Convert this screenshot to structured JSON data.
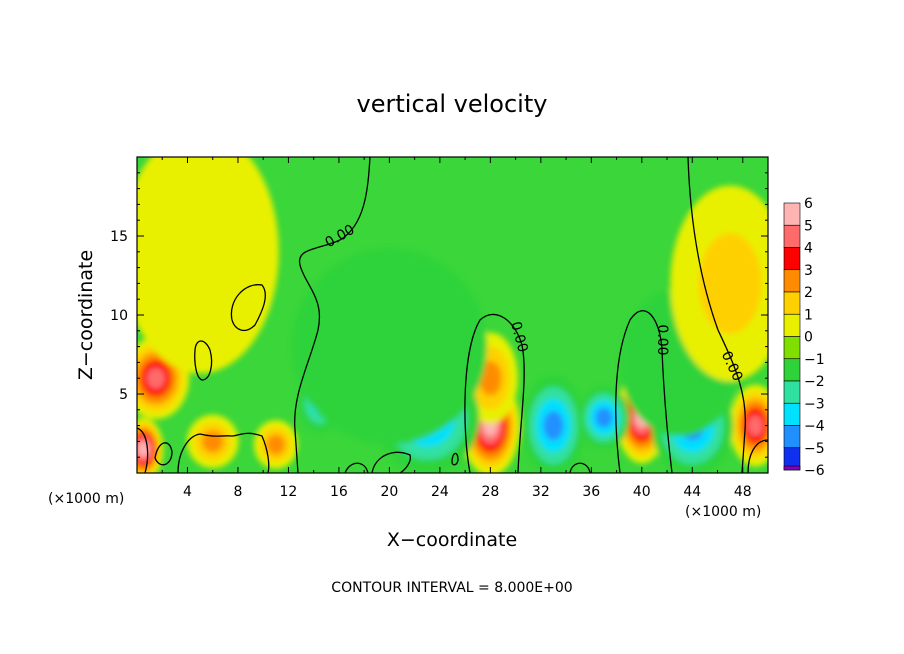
{
  "chart_data": {
    "type": "heatmap",
    "title": "vertical velocity",
    "xlabel": "X−coordinate",
    "ylabel": "Z−coordinate",
    "x_unit_left": "(×1000 m)",
    "x_unit_right": "(×1000 m)",
    "xlim": [
      0,
      50
    ],
    "ylim": [
      0,
      20
    ],
    "x_ticks": [
      "4",
      "8",
      "12",
      "16",
      "20",
      "24",
      "28",
      "32",
      "36",
      "40",
      "44",
      "48"
    ],
    "x_tick_values": [
      4,
      8,
      12,
      16,
      20,
      24,
      28,
      32,
      36,
      40,
      44,
      48
    ],
    "y_ticks": [
      "5",
      "10",
      "15"
    ],
    "y_tick_values": [
      5,
      10,
      15
    ],
    "footer": "CONTOUR INTERVAL = 8.000E+00",
    "contour_labels": [
      "0.00",
      "0.00",
      "0.00",
      "0.00"
    ],
    "colorbar": {
      "labels": [
        "6",
        "5",
        "4",
        "3",
        "2",
        "1",
        "0",
        "−1",
        "−2",
        "−3",
        "−4",
        "−5",
        "−6"
      ],
      "values": [
        6,
        5,
        4,
        3,
        2,
        1,
        0,
        -1,
        -2,
        -3,
        -4,
        -5,
        -6
      ],
      "colors": [
        "#ffb4b4",
        "#ff6b6b",
        "#ff0000",
        "#ff8c00",
        "#ffd000",
        "#e8f000",
        "#7fe000",
        "#2ed33a",
        "#30e0a0",
        "#00e0ff",
        "#2090ff",
        "#1030f0",
        "#8000c0"
      ]
    },
    "field_blobs": [
      {
        "x": 1.5,
        "z": 6.0,
        "value": 5.0,
        "sx": 1.6,
        "sz": 1.6
      },
      {
        "x": 0.5,
        "z": 1.5,
        "value": 5.5,
        "sx": 0.9,
        "sz": 1.2
      },
      {
        "x": 6.0,
        "z": 2.0,
        "value": 3.0,
        "sx": 1.2,
        "sz": 1.0
      },
      {
        "x": 11.0,
        "z": 1.8,
        "value": 3.0,
        "sx": 1.0,
        "sz": 0.9
      },
      {
        "x": 28.0,
        "z": 3.0,
        "value": 6.0,
        "sx": 1.4,
        "sz": 2.0
      },
      {
        "x": 28.0,
        "z": 6.0,
        "value": 3.0,
        "sx": 1.3,
        "sz": 1.8
      },
      {
        "x": 40.0,
        "z": 3.5,
        "value": 6.0,
        "sx": 1.2,
        "sz": 1.8
      },
      {
        "x": 49.0,
        "z": 3.0,
        "value": 5.0,
        "sx": 1.2,
        "sz": 1.6
      },
      {
        "x": 14.5,
        "z": 4.5,
        "value": -3.0,
        "sx": 1.0,
        "sz": 1.2
      },
      {
        "x": 23.0,
        "z": 3.5,
        "value": -3.5,
        "sx": 2.6,
        "sz": 2.2
      },
      {
        "x": 33.0,
        "z": 3.0,
        "value": -4.0,
        "sx": 1.5,
        "sz": 2.0
      },
      {
        "x": 37.0,
        "z": 3.5,
        "value": -3.5,
        "sx": 1.2,
        "sz": 1.2
      },
      {
        "x": 44.0,
        "z": 3.0,
        "value": -3.5,
        "sx": 2.0,
        "sz": 2.0
      },
      {
        "x": 20.0,
        "z": 8.0,
        "value": -1.2,
        "sx": 5.0,
        "sz": 4.0
      },
      {
        "x": 43.0,
        "z": 7.0,
        "value": -1.0,
        "sx": 3.0,
        "sz": 3.0
      },
      {
        "x": 5.0,
        "z": 14.0,
        "value": 1.0,
        "sx": 4.0,
        "sz": 5.0
      },
      {
        "x": 47.0,
        "z": 12.0,
        "value": 1.5,
        "sx": 3.0,
        "sz": 4.0
      }
    ]
  }
}
